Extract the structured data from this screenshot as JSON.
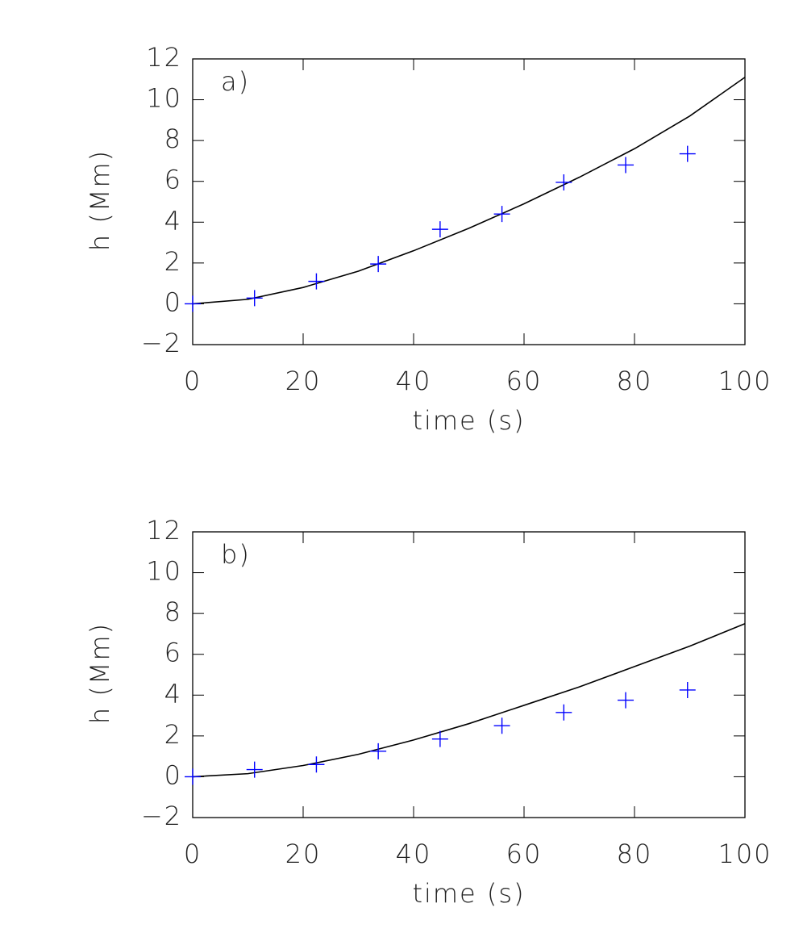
{
  "chart_data": [
    {
      "type": "line",
      "annotation": "a)",
      "xlabel": "time (s)",
      "ylabel": "h (Mm)",
      "xlim": [
        0,
        100
      ],
      "xticks": [
        0,
        20,
        40,
        60,
        80,
        100
      ],
      "ylim": [
        -2,
        12
      ],
      "yticks": [
        {
          "value": -2,
          "label": "−2"
        },
        0,
        2,
        4,
        6,
        8,
        10,
        12
      ],
      "series": [
        {
          "style": "line",
          "color": "#000000",
          "x": [
            0,
            10,
            20,
            30,
            40,
            50,
            60,
            70,
            80,
            90,
            100
          ],
          "values": [
            0,
            0.22,
            0.8,
            1.6,
            2.6,
            3.7,
            4.9,
            6.2,
            7.6,
            9.2,
            11.1
          ]
        },
        {
          "style": "marker",
          "color": "#0000ff",
          "x": [
            0,
            11.2,
            22.4,
            33.6,
            44.8,
            56,
            67.2,
            78.4,
            89.6
          ],
          "values": [
            0,
            0.28,
            1.1,
            1.95,
            3.65,
            4.4,
            5.95,
            6.8,
            7.35
          ]
        }
      ]
    },
    {
      "type": "line",
      "annotation": "b)",
      "xlabel": "time (s)",
      "ylabel": "h (Mm)",
      "xlim": [
        0,
        100
      ],
      "xticks": [
        0,
        20,
        40,
        60,
        80,
        100
      ],
      "ylim": [
        -2,
        12
      ],
      "yticks": [
        {
          "value": -2,
          "label": "−2"
        },
        0,
        2,
        4,
        6,
        8,
        10,
        12
      ],
      "series": [
        {
          "style": "line",
          "color": "#000000",
          "x": [
            0,
            10,
            20,
            30,
            40,
            50,
            60,
            70,
            80,
            90,
            100
          ],
          "values": [
            0,
            0.15,
            0.55,
            1.1,
            1.8,
            2.6,
            3.5,
            4.4,
            5.4,
            6.4,
            7.5
          ]
        },
        {
          "style": "marker",
          "color": "#0000ff",
          "x": [
            0,
            11.2,
            22.4,
            33.6,
            44.8,
            56,
            67.2,
            78.4,
            89.6
          ],
          "values": [
            0,
            0.35,
            0.6,
            1.25,
            1.85,
            2.5,
            3.15,
            3.75,
            4.25
          ]
        }
      ]
    }
  ]
}
